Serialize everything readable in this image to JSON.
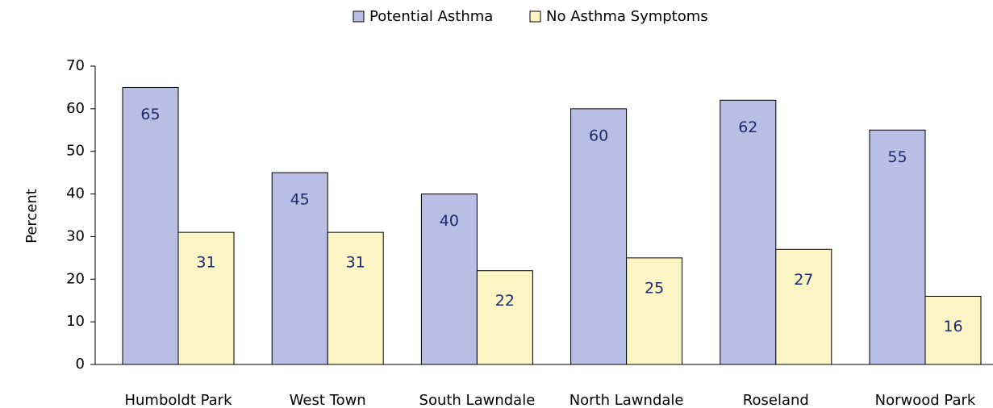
{
  "chart_data": {
    "type": "bar",
    "y_label": "Percent",
    "categories": [
      "Humboldt Park",
      "West Town",
      "South Lawndale",
      "North Lawndale",
      "Roseland",
      "Norwood Park"
    ],
    "series": [
      {
        "name": "Potential Asthma",
        "color": "#b9bfe4",
        "values": [
          65,
          45,
          40,
          60,
          62,
          55
        ]
      },
      {
        "name": "No Asthma Symptoms",
        "color": "#fbf5c5",
        "values": [
          31,
          31,
          22,
          25,
          27,
          16
        ]
      }
    ],
    "ylim": [
      0,
      70
    ],
    "yticks": [
      0,
      10,
      20,
      30,
      40,
      50,
      60,
      70
    ],
    "legend": "top"
  }
}
